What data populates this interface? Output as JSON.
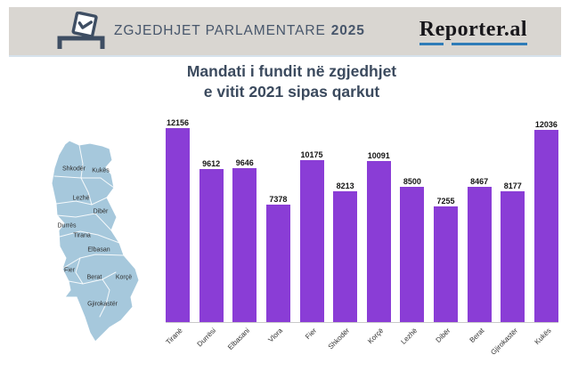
{
  "header": {
    "banner_title": "ZGJEDHJET PARLAMENTARE",
    "banner_year": "2025",
    "logo_text": "Reporter.al"
  },
  "title": {
    "line1": "Mandati i fundit në zgjedhjet",
    "line2": "e vitit 2021 sipas qarkut"
  },
  "map": {
    "labels": [
      "Shkodër",
      "Kukës",
      "Lezhë",
      "Dibër",
      "Durrës",
      "Tirana",
      "Elbasan",
      "Fier",
      "Berat",
      "Korçë",
      "Gjirokastër"
    ]
  },
  "chart_data": {
    "type": "bar",
    "title": "Mandati i fundit në zgjedhjet e vitit 2021 sipas qarkut",
    "categories": [
      "Tiranë",
      "Durrësi",
      "Elbasani",
      "Vlora",
      "Fier",
      "Shkodër",
      "Korçë",
      "Lezhë",
      "Dibër",
      "Berat",
      "Gjirokastër",
      "Kukës"
    ],
    "values": [
      12156,
      9612,
      9646,
      7378,
      10175,
      8213,
      10091,
      8500,
      7255,
      8467,
      8177,
      12036
    ],
    "xlabel": "",
    "ylabel": "",
    "ylim": [
      0,
      12600
    ],
    "grid": false,
    "legend": false,
    "value_labels": true,
    "bar_color": "#8a3dd6"
  },
  "colors": {
    "bar_purple": "#8a3dd6",
    "band_grey": "#d9d6d1",
    "slate_text": "#47566b",
    "title_text": "#3b4a5e",
    "map_blue": "#a6c8dc",
    "logo_underline_blue": "#2f7cb8",
    "logo_black": "#17161a"
  }
}
